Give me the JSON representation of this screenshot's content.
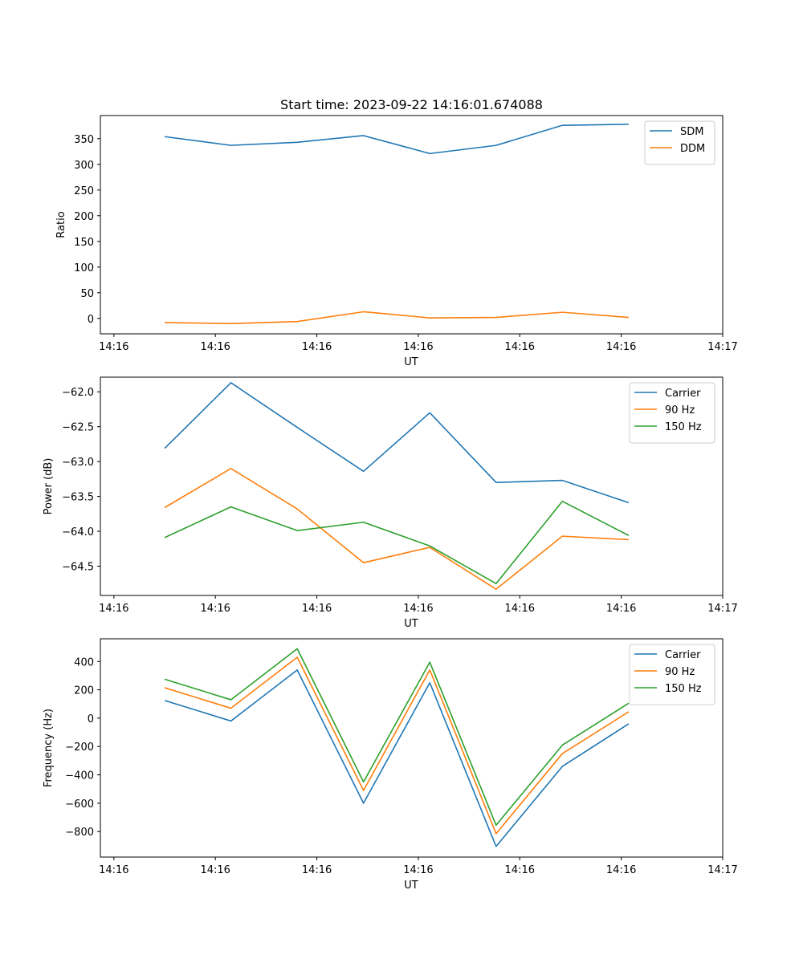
{
  "figure": {
    "title": "Start time: 2023-09-22 14:16:01.674088"
  },
  "colors": {
    "blue": "#1f77b4",
    "orange": "#ff7f0e",
    "green": "#2ca02c"
  },
  "chart_data": [
    {
      "type": "line",
      "title": "Start time: 2023-09-22 14:16:01.674088",
      "xlabel": "UT",
      "ylabel": "Ratio",
      "legend_position": "top-right",
      "x_index_range": [
        -0.2,
        9.0
      ],
      "x_ticks": [
        {
          "pos": 0,
          "label": "14:16"
        },
        {
          "pos": 1.5,
          "label": "14:16"
        },
        {
          "pos": 3,
          "label": "14:16"
        },
        {
          "pos": 4.5,
          "label": "14:16"
        },
        {
          "pos": 6,
          "label": "14:16"
        },
        {
          "pos": 7.5,
          "label": "14:16"
        },
        {
          "pos": 9,
          "label": "14:17"
        }
      ],
      "x_points": [
        0.75,
        1.73,
        2.71,
        3.69,
        4.67,
        5.65,
        6.63,
        7.61
      ],
      "ylim": [
        -30,
        395
      ],
      "y_ticks": [
        0,
        50,
        100,
        150,
        200,
        250,
        300,
        350
      ],
      "series": [
        {
          "name": "SDM",
          "color": "#1f77b4",
          "values": [
            354,
            337,
            343,
            356,
            321,
            337,
            376,
            378
          ]
        },
        {
          "name": "DDM",
          "color": "#ff7f0e",
          "values": [
            -8,
            -10,
            -6,
            13,
            1,
            2,
            12,
            2
          ]
        }
      ]
    },
    {
      "type": "line",
      "title": "",
      "xlabel": "UT",
      "ylabel": "Power (dB)",
      "legend_position": "top-right",
      "x_index_range": [
        -0.2,
        9.0
      ],
      "x_ticks": [
        {
          "pos": 0,
          "label": "14:16"
        },
        {
          "pos": 1.5,
          "label": "14:16"
        },
        {
          "pos": 3,
          "label": "14:16"
        },
        {
          "pos": 4.5,
          "label": "14:16"
        },
        {
          "pos": 6,
          "label": "14:16"
        },
        {
          "pos": 7.5,
          "label": "14:16"
        },
        {
          "pos": 9,
          "label": "14:17"
        }
      ],
      "x_points": [
        0.75,
        1.73,
        2.71,
        3.69,
        4.67,
        5.65,
        6.63,
        7.61
      ],
      "ylim": [
        -64.92,
        -61.79
      ],
      "y_ticks": [
        -64.5,
        -64.0,
        -63.5,
        -63.0,
        -62.5,
        -62.0
      ],
      "y_tick_labels": [
        "−64.5",
        "−64.0",
        "−63.5",
        "−63.0",
        "−62.5",
        "−62.0"
      ],
      "series": [
        {
          "name": "Carrier",
          "color": "#1f77b4",
          "values": [
            -62.81,
            -61.87,
            -62.51,
            -63.14,
            -62.3,
            -63.3,
            -63.27,
            -63.59
          ]
        },
        {
          "name": "90 Hz",
          "color": "#ff7f0e",
          "values": [
            -63.66,
            -63.1,
            -63.68,
            -64.45,
            -64.23,
            -64.83,
            -64.07,
            -64.12
          ]
        },
        {
          "name": "150 Hz",
          "color": "#2ca02c",
          "values": [
            -64.09,
            -63.65,
            -63.99,
            -63.87,
            -64.21,
            -64.75,
            -63.57,
            -64.06
          ]
        }
      ]
    },
    {
      "type": "line",
      "title": "",
      "xlabel": "UT",
      "ylabel": "Frequency (Hz)",
      "legend_position": "top-right",
      "x_index_range": [
        -0.2,
        9.0
      ],
      "x_ticks": [
        {
          "pos": 0,
          "label": "14:16"
        },
        {
          "pos": 1.5,
          "label": "14:16"
        },
        {
          "pos": 3,
          "label": "14:16"
        },
        {
          "pos": 4.5,
          "label": "14:16"
        },
        {
          "pos": 6,
          "label": "14:16"
        },
        {
          "pos": 7.5,
          "label": "14:16"
        },
        {
          "pos": 9,
          "label": "14:17"
        }
      ],
      "x_points": [
        0.75,
        1.73,
        2.71,
        3.69,
        4.67,
        5.65,
        6.63,
        7.61
      ],
      "ylim": [
        -980,
        560
      ],
      "y_ticks": [
        -800,
        -600,
        -400,
        -200,
        0,
        200,
        400
      ],
      "y_tick_labels": [
        "−800",
        "−600",
        "−400",
        "−200",
        "0",
        "200",
        "400"
      ],
      "series": [
        {
          "name": "Carrier",
          "color": "#1f77b4",
          "values": [
            125,
            -20,
            340,
            -600,
            250,
            -905,
            -340,
            -40
          ]
        },
        {
          "name": "90 Hz",
          "color": "#ff7f0e",
          "values": [
            215,
            70,
            430,
            -510,
            340,
            -815,
            -250,
            45
          ]
        },
        {
          "name": "150 Hz",
          "color": "#2ca02c",
          "values": [
            275,
            130,
            490,
            -450,
            395,
            -755,
            -190,
            105
          ]
        }
      ]
    }
  ]
}
